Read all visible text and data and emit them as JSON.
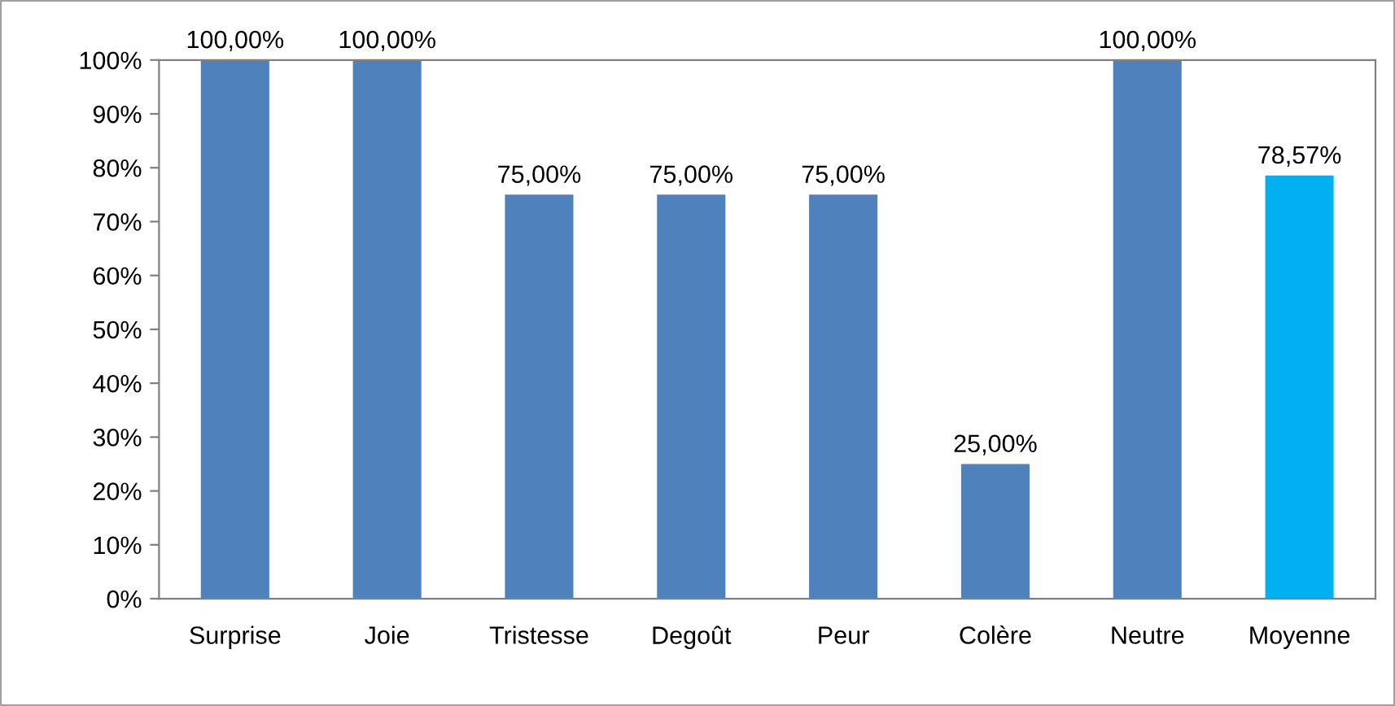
{
  "chart_data": {
    "type": "bar",
    "categories": [
      "Surprise",
      "Joie",
      "Tristesse",
      "Degoût",
      "Peur",
      "Colère",
      "Neutre",
      "Moyenne"
    ],
    "values": [
      100,
      100,
      75,
      75,
      75,
      25,
      100,
      78.57
    ],
    "colors": [
      "#4f81bd",
      "#4f81bd",
      "#4f81bd",
      "#4f81bd",
      "#4f81bd",
      "#4f81bd",
      "#4f81bd",
      "#00b0f0"
    ],
    "value_labels": [
      "100,00%",
      "100,00%",
      "75,00%",
      "75,00%",
      "75,00%",
      "25,00%",
      "100,00%",
      "78,57%"
    ],
    "ylim": [
      0,
      100
    ],
    "yticks": [
      {
        "value": 0,
        "label": "0%"
      },
      {
        "value": 10,
        "label": "10%"
      },
      {
        "value": 20,
        "label": "20%"
      },
      {
        "value": 30,
        "label": "30%"
      },
      {
        "value": 40,
        "label": "40%"
      },
      {
        "value": 50,
        "label": "50%"
      },
      {
        "value": 60,
        "label": "60%"
      },
      {
        "value": 70,
        "label": "70%"
      },
      {
        "value": 80,
        "label": "80%"
      },
      {
        "value": 90,
        "label": "90%"
      },
      {
        "value": 100,
        "label": "100%"
      }
    ],
    "grid": false,
    "legend": false
  }
}
